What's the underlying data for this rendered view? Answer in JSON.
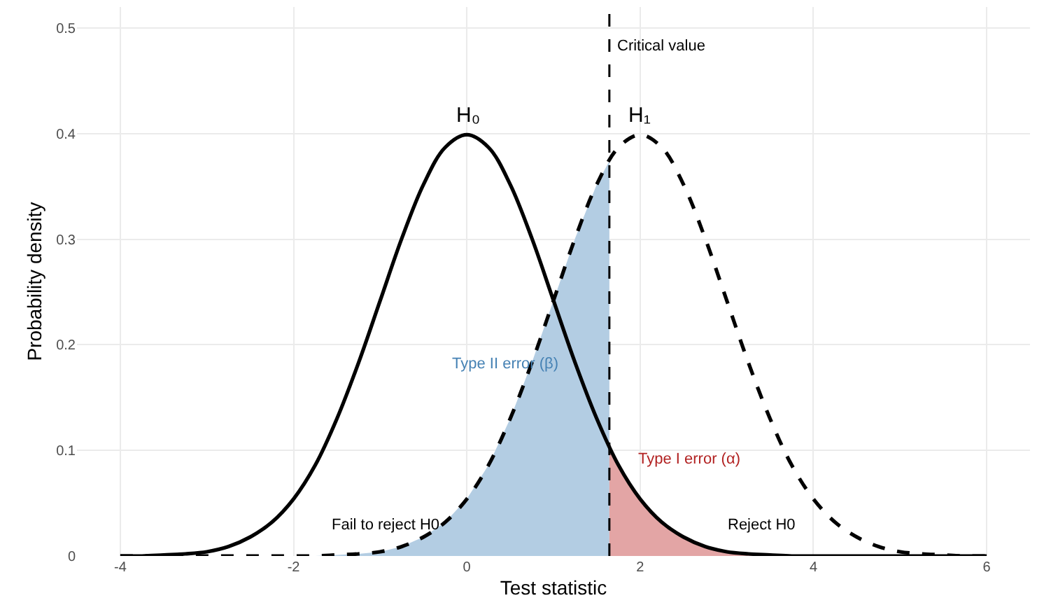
{
  "chart_data": {
    "type": "line",
    "xlabel": "Test statistic",
    "ylabel": "Probability density",
    "xlim": [
      -4.5,
      6.5
    ],
    "ylim": [
      0,
      0.52
    ],
    "xticks": [
      -4,
      -2,
      0,
      2,
      4,
      6
    ],
    "yticks": [
      0,
      0.1,
      0.2,
      0.3,
      0.4,
      0.5
    ],
    "grid": true,
    "series": [
      {
        "type": "area",
        "color": "#b3cde3",
        "x": [
          -4,
          -3.5,
          -3,
          -2.5,
          -2,
          -1.75,
          -1.5,
          -1.25,
          -1,
          -0.75,
          -0.5,
          -0.25,
          0,
          0.25,
          0.5,
          0.75,
          1,
          1.25,
          1.5,
          1.645
        ],
        "values": [
          0,
          0,
          0,
          0,
          0,
          0,
          0.001,
          0.002,
          0.004,
          0.009,
          0.018,
          0.032,
          0.054,
          0.086,
          0.13,
          0.183,
          0.242,
          0.301,
          0.352,
          0.374
        ]
      },
      {
        "type": "area",
        "color": "#e3a5a5",
        "x": [
          1.645,
          1.75,
          2,
          2.25,
          2.5,
          2.75,
          3,
          3.25,
          3.5,
          3.75,
          4,
          5,
          6
        ],
        "values": [
          0.103,
          0.086,
          0.054,
          0.032,
          0.018,
          0.009,
          0.004,
          0.002,
          0.001,
          0,
          0,
          0,
          0
        ]
      },
      {
        "color": "#000000",
        "line_style": "solid",
        "x": [
          -4,
          -3.75,
          -3.5,
          -3.25,
          -3,
          -2.75,
          -2.5,
          -2.25,
          -2,
          -1.75,
          -1.5,
          -1.25,
          -1,
          -0.75,
          -0.5,
          -0.25,
          0,
          0.25,
          0.5,
          0.75,
          1,
          1.25,
          1.5,
          1.75,
          2,
          2.25,
          2.5,
          2.75,
          3,
          3.25,
          3.5,
          3.75,
          4,
          4.25,
          4.5,
          4.75,
          5,
          5.25,
          5.5,
          5.75,
          6
        ],
        "values": [
          0,
          0,
          0.001,
          0.002,
          0.004,
          0.009,
          0.018,
          0.032,
          0.054,
          0.086,
          0.13,
          0.183,
          0.242,
          0.301,
          0.352,
          0.387,
          0.399,
          0.387,
          0.352,
          0.301,
          0.242,
          0.183,
          0.13,
          0.086,
          0.054,
          0.032,
          0.018,
          0.009,
          0.004,
          0.002,
          0.001,
          0,
          0,
          0,
          0,
          0,
          0,
          0,
          0,
          0,
          0
        ]
      },
      {
        "color": "#000000",
        "line_style": "dashed",
        "x": [
          -4,
          -3.75,
          -3.5,
          -3.25,
          -3,
          -2.75,
          -2.5,
          -2.25,
          -2,
          -1.75,
          -1.5,
          -1.25,
          -1,
          -0.75,
          -0.5,
          -0.25,
          0,
          0.25,
          0.5,
          0.75,
          1,
          1.25,
          1.5,
          1.75,
          2,
          2.25,
          2.5,
          2.75,
          3,
          3.25,
          3.5,
          3.75,
          4,
          4.25,
          4.5,
          4.75,
          5,
          5.25,
          5.5,
          5.75,
          6
        ],
        "values": [
          0,
          0,
          0,
          0,
          0,
          0,
          0,
          0,
          0,
          0,
          0.001,
          0.002,
          0.004,
          0.009,
          0.018,
          0.032,
          0.054,
          0.086,
          0.13,
          0.183,
          0.242,
          0.301,
          0.352,
          0.387,
          0.399,
          0.387,
          0.352,
          0.301,
          0.242,
          0.183,
          0.13,
          0.086,
          0.054,
          0.032,
          0.018,
          0.009,
          0.004,
          0.002,
          0.001,
          0,
          0
        ]
      }
    ],
    "ref_lines": [
      {
        "axis": "x",
        "value": 1.645,
        "label": "Critical value",
        "color": "#000000",
        "line_style": "dashed"
      }
    ],
    "annotations": [
      "H₀",
      "H₁",
      "Type II error (β)",
      "Type I error (α)",
      "Fail to reject H0",
      "Reject H0"
    ]
  }
}
